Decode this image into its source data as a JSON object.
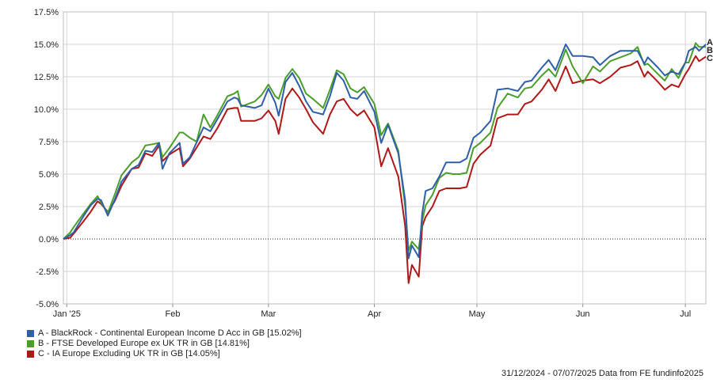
{
  "legend": [
    {
      "code": "A",
      "label": "A - BlackRock - Continental European Income D Acc in GB [15.02%]",
      "color": "#2e5fa8"
    },
    {
      "code": "B",
      "label": "B - FTSE Developed Europe ex UK TR in GB [14.81%]",
      "color": "#4a9e2a"
    },
    {
      "code": "C",
      "label": "C - IA Europe Excluding UK TR in GB [14.05%]",
      "color": "#b01818"
    }
  ],
  "footer": "31/12/2024 - 07/07/2025 Data from FE fundinfo2025",
  "chart_data": {
    "type": "line",
    "title": "",
    "xlabel": "",
    "ylabel": "",
    "x_ticks": [
      "Jan '25",
      "Feb",
      "Mar",
      "Apr",
      "May",
      "Jun",
      "Jul"
    ],
    "y_ticks": [
      "17.5%",
      "15.0%",
      "12.5%",
      "10.0%",
      "7.5%",
      "5.0%",
      "2.5%",
      "0.0%",
      "-2.5%",
      "-5.0%"
    ],
    "ylim": [
      -5.0,
      17.5
    ],
    "xlim": [
      "2024-12-31",
      "2025-07-07"
    ],
    "grid": true,
    "zero_line": "dotted",
    "end_labels": [
      "A",
      "B",
      "C"
    ],
    "series": [
      {
        "name": "A",
        "color": "#2e5fa8",
        "points": [
          [
            "2024-12-31",
            0
          ],
          [
            "2025-01-02",
            0.3
          ],
          [
            "2025-01-03",
            0.5
          ],
          [
            "2025-01-06",
            1.8
          ],
          [
            "2025-01-08",
            2.6
          ],
          [
            "2025-01-10",
            3.1
          ],
          [
            "2025-01-11",
            3.0
          ],
          [
            "2025-01-13",
            1.8
          ],
          [
            "2025-01-15",
            3.0
          ],
          [
            "2025-01-17",
            4.4
          ],
          [
            "2025-01-20",
            5.4
          ],
          [
            "2025-01-22",
            5.7
          ],
          [
            "2025-01-24",
            6.8
          ],
          [
            "2025-01-26",
            6.7
          ],
          [
            "2025-01-28",
            7.4
          ],
          [
            "2025-01-29",
            5.4
          ],
          [
            "2025-01-31",
            6.6
          ],
          [
            "2025-02-03",
            7.4
          ],
          [
            "2025-02-04",
            5.8
          ],
          [
            "2025-02-06",
            6.3
          ],
          [
            "2025-02-10",
            8.6
          ],
          [
            "2025-02-12",
            8.3
          ],
          [
            "2025-02-14",
            9.2
          ],
          [
            "2025-02-17",
            10.6
          ],
          [
            "2025-02-19",
            10.9
          ],
          [
            "2025-02-20",
            10.8
          ],
          [
            "2025-02-21",
            10.3
          ],
          [
            "2025-02-25",
            10.1
          ],
          [
            "2025-02-27",
            10.3
          ],
          [
            "2025-03-01",
            11.6
          ],
          [
            "2025-03-03",
            10.5
          ],
          [
            "2025-03-04",
            9.5
          ],
          [
            "2025-03-06",
            12.1
          ],
          [
            "2025-03-08",
            12.8
          ],
          [
            "2025-03-10",
            11.8
          ],
          [
            "2025-03-12",
            10.6
          ],
          [
            "2025-03-14",
            9.8
          ],
          [
            "2025-03-17",
            9.6
          ],
          [
            "2025-03-19",
            11.0
          ],
          [
            "2025-03-21",
            12.8
          ],
          [
            "2025-03-23",
            12.2
          ],
          [
            "2025-03-25",
            10.9
          ],
          [
            "2025-03-27",
            10.8
          ],
          [
            "2025-03-29",
            11.4
          ],
          [
            "2025-04-01",
            9.8
          ],
          [
            "2025-04-03",
            7.4
          ],
          [
            "2025-04-05",
            8.8
          ],
          [
            "2025-04-08",
            6.6
          ],
          [
            "2025-04-10",
            3.0
          ],
          [
            "2025-04-11",
            -1.5
          ],
          [
            "2025-04-12",
            -0.5
          ],
          [
            "2025-04-14",
            -1.4
          ],
          [
            "2025-04-15",
            2.0
          ],
          [
            "2025-04-16",
            3.7
          ],
          [
            "2025-04-18",
            3.9
          ],
          [
            "2025-04-20",
            4.8
          ],
          [
            "2025-04-22",
            5.9
          ],
          [
            "2025-04-24",
            5.9
          ],
          [
            "2025-04-26",
            5.9
          ],
          [
            "2025-04-28",
            6.2
          ],
          [
            "2025-04-30",
            7.8
          ],
          [
            "2025-05-02",
            8.2
          ],
          [
            "2025-05-05",
            9.1
          ],
          [
            "2025-05-07",
            11.5
          ],
          [
            "2025-05-10",
            11.6
          ],
          [
            "2025-05-13",
            11.4
          ],
          [
            "2025-05-15",
            12.1
          ],
          [
            "2025-05-17",
            12.2
          ],
          [
            "2025-05-20",
            13.2
          ],
          [
            "2025-05-22",
            13.8
          ],
          [
            "2025-05-24",
            13.0
          ],
          [
            "2025-05-27",
            15.0
          ],
          [
            "2025-05-29",
            14.1
          ],
          [
            "2025-06-01",
            14.1
          ],
          [
            "2025-06-04",
            14.0
          ],
          [
            "2025-06-06",
            13.4
          ],
          [
            "2025-06-09",
            14.1
          ],
          [
            "2025-06-12",
            14.5
          ],
          [
            "2025-06-15",
            14.5
          ],
          [
            "2025-06-17",
            14.5
          ],
          [
            "2025-06-19",
            13.5
          ],
          [
            "2025-06-20",
            14.0
          ],
          [
            "2025-06-23",
            13.2
          ],
          [
            "2025-06-25",
            12.6
          ],
          [
            "2025-06-27",
            12.9
          ],
          [
            "2025-06-29",
            12.7
          ],
          [
            "2025-07-01",
            13.6
          ],
          [
            "2025-07-02",
            14.5
          ],
          [
            "2025-07-04",
            14.8
          ],
          [
            "2025-07-05",
            14.5
          ],
          [
            "2025-07-07",
            15.0
          ]
        ]
      },
      {
        "name": "B",
        "color": "#4a9e2a",
        "points": [
          [
            "2024-12-31",
            0
          ],
          [
            "2025-01-02",
            0.5
          ],
          [
            "2025-01-03",
            0.9
          ],
          [
            "2025-01-06",
            2.0
          ],
          [
            "2025-01-08",
            2.7
          ],
          [
            "2025-01-10",
            3.3
          ],
          [
            "2025-01-11",
            2.8
          ],
          [
            "2025-01-13",
            2.0
          ],
          [
            "2025-01-15",
            3.4
          ],
          [
            "2025-01-17",
            4.9
          ],
          [
            "2025-01-20",
            5.9
          ],
          [
            "2025-01-22",
            6.3
          ],
          [
            "2025-01-24",
            7.2
          ],
          [
            "2025-01-26",
            7.3
          ],
          [
            "2025-01-28",
            7.4
          ],
          [
            "2025-01-29",
            6.3
          ],
          [
            "2025-01-31",
            7.0
          ],
          [
            "2025-02-03",
            8.2
          ],
          [
            "2025-02-04",
            8.2
          ],
          [
            "2025-02-06",
            7.8
          ],
          [
            "2025-02-08",
            7.5
          ],
          [
            "2025-02-10",
            9.6
          ],
          [
            "2025-02-12",
            8.6
          ],
          [
            "2025-02-14",
            9.5
          ],
          [
            "2025-02-17",
            11.0
          ],
          [
            "2025-02-19",
            11.2
          ],
          [
            "2025-02-20",
            11.4
          ],
          [
            "2025-02-21",
            10.2
          ],
          [
            "2025-02-25",
            10.6
          ],
          [
            "2025-02-27",
            11.1
          ],
          [
            "2025-03-01",
            11.9
          ],
          [
            "2025-03-03",
            11.0
          ],
          [
            "2025-03-04",
            10.8
          ],
          [
            "2025-03-06",
            12.4
          ],
          [
            "2025-03-08",
            13.1
          ],
          [
            "2025-03-10",
            12.4
          ],
          [
            "2025-03-12",
            11.2
          ],
          [
            "2025-03-14",
            10.8
          ],
          [
            "2025-03-17",
            10.1
          ],
          [
            "2025-03-19",
            11.5
          ],
          [
            "2025-03-21",
            13.0
          ],
          [
            "2025-03-23",
            12.7
          ],
          [
            "2025-03-25",
            11.6
          ],
          [
            "2025-03-27",
            11.3
          ],
          [
            "2025-03-29",
            11.7
          ],
          [
            "2025-04-01",
            10.4
          ],
          [
            "2025-04-03",
            8.0
          ],
          [
            "2025-04-05",
            8.9
          ],
          [
            "2025-04-08",
            6.8
          ],
          [
            "2025-04-10",
            2.5
          ],
          [
            "2025-04-11",
            -0.9
          ],
          [
            "2025-04-12",
            -0.2
          ],
          [
            "2025-04-14",
            -0.8
          ],
          [
            "2025-04-15",
            1.4
          ],
          [
            "2025-04-16",
            2.6
          ],
          [
            "2025-04-18",
            3.4
          ],
          [
            "2025-04-20",
            4.7
          ],
          [
            "2025-04-22",
            5.1
          ],
          [
            "2025-04-24",
            5.0
          ],
          [
            "2025-04-26",
            5.0
          ],
          [
            "2025-04-28",
            5.1
          ],
          [
            "2025-04-30",
            7.0
          ],
          [
            "2025-05-02",
            7.4
          ],
          [
            "2025-05-05",
            8.2
          ],
          [
            "2025-05-07",
            10.1
          ],
          [
            "2025-05-10",
            11.2
          ],
          [
            "2025-05-13",
            10.9
          ],
          [
            "2025-05-15",
            11.6
          ],
          [
            "2025-05-17",
            11.7
          ],
          [
            "2025-05-20",
            12.6
          ],
          [
            "2025-05-22",
            13.1
          ],
          [
            "2025-05-24",
            12.5
          ],
          [
            "2025-05-27",
            14.6
          ],
          [
            "2025-05-29",
            13.3
          ],
          [
            "2025-06-01",
            12.0
          ],
          [
            "2025-06-04",
            13.3
          ],
          [
            "2025-06-06",
            12.9
          ],
          [
            "2025-06-09",
            13.7
          ],
          [
            "2025-06-12",
            14.0
          ],
          [
            "2025-06-15",
            14.3
          ],
          [
            "2025-06-17",
            14.8
          ],
          [
            "2025-06-19",
            13.4
          ],
          [
            "2025-06-20",
            13.5
          ],
          [
            "2025-06-23",
            12.7
          ],
          [
            "2025-06-25",
            12.2
          ],
          [
            "2025-06-27",
            13.1
          ],
          [
            "2025-06-29",
            12.4
          ],
          [
            "2025-07-01",
            13.6
          ],
          [
            "2025-07-02",
            13.6
          ],
          [
            "2025-07-04",
            15.1
          ],
          [
            "2025-07-05",
            14.8
          ],
          [
            "2025-07-07",
            14.8
          ]
        ]
      },
      {
        "name": "C",
        "color": "#b01818",
        "points": [
          [
            "2024-12-31",
            0
          ],
          [
            "2025-01-02",
            0.1
          ],
          [
            "2025-01-03",
            0.4
          ],
          [
            "2025-01-06",
            1.4
          ],
          [
            "2025-01-08",
            2.1
          ],
          [
            "2025-01-10",
            2.9
          ],
          [
            "2025-01-11",
            2.7
          ],
          [
            "2025-01-13",
            2.1
          ],
          [
            "2025-01-15",
            2.9
          ],
          [
            "2025-01-17",
            4.1
          ],
          [
            "2025-01-20",
            5.4
          ],
          [
            "2025-01-22",
            5.5
          ],
          [
            "2025-01-24",
            6.6
          ],
          [
            "2025-01-26",
            6.4
          ],
          [
            "2025-01-28",
            7.2
          ],
          [
            "2025-01-29",
            6.0
          ],
          [
            "2025-01-31",
            6.5
          ],
          [
            "2025-02-03",
            7.0
          ],
          [
            "2025-02-04",
            5.6
          ],
          [
            "2025-02-06",
            6.2
          ],
          [
            "2025-02-10",
            7.9
          ],
          [
            "2025-02-12",
            7.7
          ],
          [
            "2025-02-14",
            8.5
          ],
          [
            "2025-02-17",
            10.0
          ],
          [
            "2025-02-19",
            10.1
          ],
          [
            "2025-02-20",
            10.1
          ],
          [
            "2025-02-21",
            9.1
          ],
          [
            "2025-02-25",
            9.1
          ],
          [
            "2025-02-27",
            9.3
          ],
          [
            "2025-03-01",
            9.9
          ],
          [
            "2025-03-03",
            9.1
          ],
          [
            "2025-03-04",
            8.1
          ],
          [
            "2025-03-06",
            10.8
          ],
          [
            "2025-03-08",
            11.6
          ],
          [
            "2025-03-10",
            10.9
          ],
          [
            "2025-03-12",
            10.0
          ],
          [
            "2025-03-14",
            9.0
          ],
          [
            "2025-03-17",
            8.1
          ],
          [
            "2025-03-19",
            9.6
          ],
          [
            "2025-03-21",
            10.6
          ],
          [
            "2025-03-23",
            10.8
          ],
          [
            "2025-03-25",
            10.0
          ],
          [
            "2025-03-27",
            9.5
          ],
          [
            "2025-03-29",
            9.9
          ],
          [
            "2025-04-01",
            8.6
          ],
          [
            "2025-04-03",
            5.6
          ],
          [
            "2025-04-05",
            7.0
          ],
          [
            "2025-04-08",
            4.8
          ],
          [
            "2025-04-10",
            1.0
          ],
          [
            "2025-04-11",
            -3.4
          ],
          [
            "2025-04-12",
            -2.0
          ],
          [
            "2025-04-14",
            -2.9
          ],
          [
            "2025-04-15",
            1.0
          ],
          [
            "2025-04-16",
            1.7
          ],
          [
            "2025-04-18",
            2.5
          ],
          [
            "2025-04-20",
            3.7
          ],
          [
            "2025-04-22",
            3.9
          ],
          [
            "2025-04-24",
            3.9
          ],
          [
            "2025-04-26",
            3.9
          ],
          [
            "2025-04-28",
            4.0
          ],
          [
            "2025-04-30",
            5.8
          ],
          [
            "2025-05-02",
            6.5
          ],
          [
            "2025-05-05",
            7.2
          ],
          [
            "2025-05-07",
            9.3
          ],
          [
            "2025-05-10",
            9.6
          ],
          [
            "2025-05-13",
            9.6
          ],
          [
            "2025-05-15",
            10.4
          ],
          [
            "2025-05-17",
            10.6
          ],
          [
            "2025-05-20",
            11.5
          ],
          [
            "2025-05-22",
            12.3
          ],
          [
            "2025-05-24",
            11.4
          ],
          [
            "2025-05-27",
            13.3
          ],
          [
            "2025-05-29",
            12.0
          ],
          [
            "2025-06-01",
            12.2
          ],
          [
            "2025-06-04",
            12.3
          ],
          [
            "2025-06-06",
            12.0
          ],
          [
            "2025-06-09",
            12.5
          ],
          [
            "2025-06-12",
            13.2
          ],
          [
            "2025-06-15",
            13.4
          ],
          [
            "2025-06-17",
            13.7
          ],
          [
            "2025-06-19",
            12.5
          ],
          [
            "2025-06-20",
            12.9
          ],
          [
            "2025-06-23",
            12.1
          ],
          [
            "2025-06-25",
            11.5
          ],
          [
            "2025-06-27",
            11.9
          ],
          [
            "2025-06-29",
            11.7
          ],
          [
            "2025-07-01",
            12.7
          ],
          [
            "2025-07-02",
            13.1
          ],
          [
            "2025-07-04",
            14.1
          ],
          [
            "2025-07-05",
            13.7
          ],
          [
            "2025-07-07",
            14.05
          ]
        ]
      }
    ]
  }
}
